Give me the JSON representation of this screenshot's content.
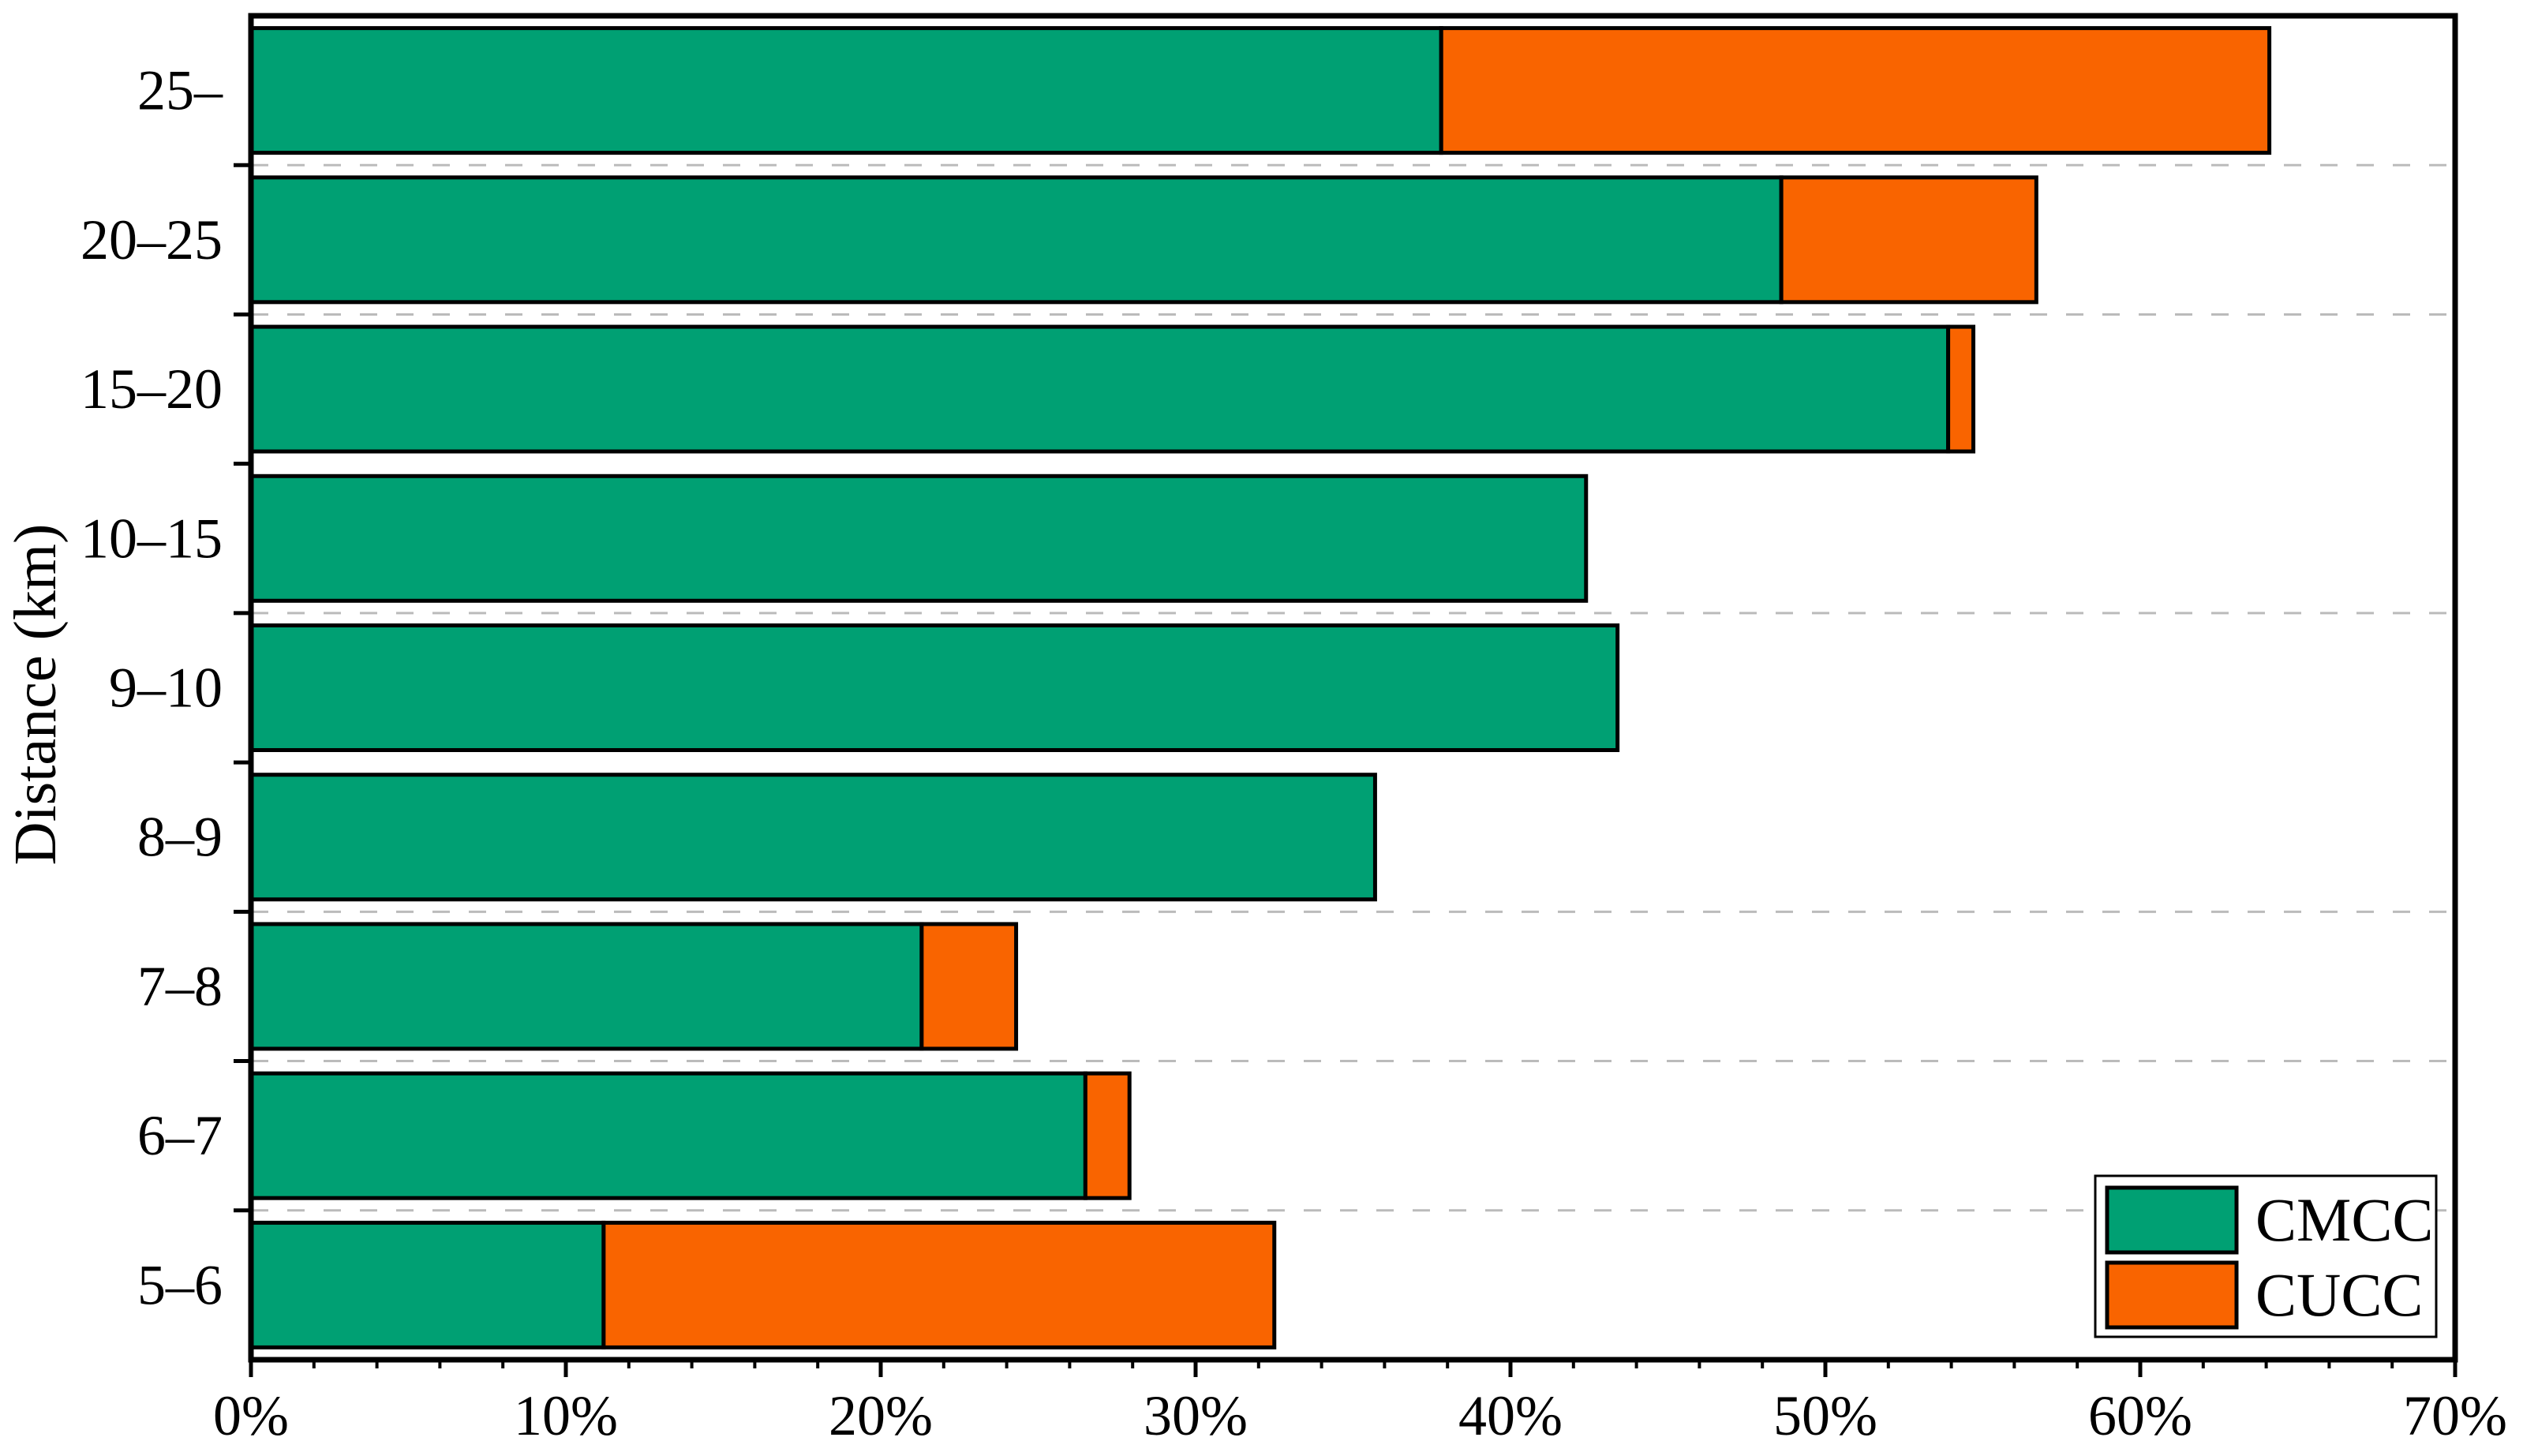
{
  "figure": {
    "background": "#FFFFFF"
  },
  "chart_data": {
    "type": "bar",
    "orientation": "horizontal",
    "stacked": true,
    "title": "",
    "xlabel": "",
    "ylabel": "Distance (km)",
    "categories_top_to_bottom": [
      "25–",
      "20–25",
      "15–20",
      "10–15",
      "9–10",
      "8–9",
      "7–8",
      "6–7",
      "5–6"
    ],
    "series": [
      {
        "name": "CMCC",
        "color": "#00A073",
        "values_pct": [
          37.8,
          48.6,
          53.9,
          42.4,
          43.4,
          35.7,
          21.3,
          26.5,
          11.2
        ]
      },
      {
        "name": "CUCC",
        "color": "#F96400",
        "values_pct": [
          26.3,
          8.1,
          0.8,
          0,
          0,
          0,
          3.0,
          1.4,
          21.3
        ]
      }
    ],
    "totals_pct": [
      64.1,
      56.7,
      54.7,
      42.4,
      43.4,
      35.7,
      24.3,
      27.9,
      32.5
    ],
    "xlim": [
      0,
      70
    ],
    "x_tick_labels": [
      "0%",
      "10%",
      "20%",
      "30%",
      "40%",
      "50%",
      "60%",
      "70%"
    ],
    "x_major_tick_step_pct": 10,
    "x_minor_tick_step_pct": 2,
    "grid": "dashed horizontal gridlines in gaps between some category rows",
    "gridline_after_rows": [
      1,
      2,
      4,
      6,
      7,
      8
    ],
    "legend": {
      "position": "lower right",
      "entries": [
        "CMCC",
        "CUCC"
      ]
    }
  },
  "styles": {
    "bar_outline_color": "#000000",
    "axis_color": "#000000",
    "grid_color": "#BBBBBB",
    "text_color": "#000000",
    "legend_background": "#FFFFFF"
  }
}
